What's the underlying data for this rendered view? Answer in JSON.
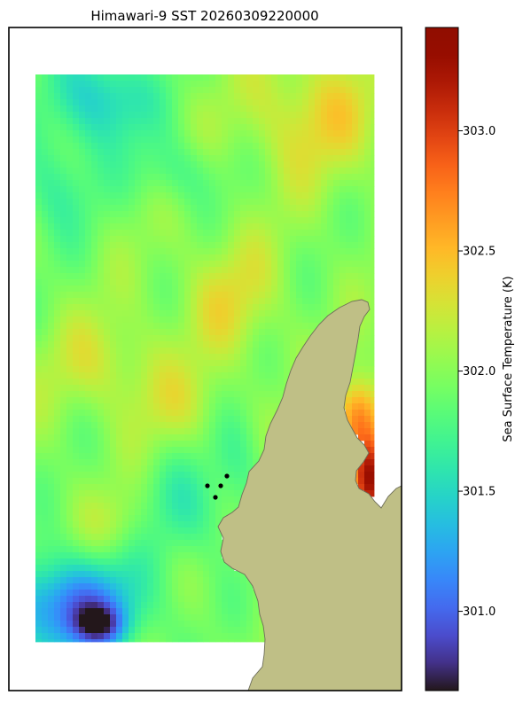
{
  "chart_data": {
    "type": "heatmap",
    "title": "Himawari-9 SST 20260309220000",
    "colorbar": {
      "label": "Sea Surface Temperature (K)",
      "range": [
        300.67,
        303.43
      ],
      "ticks": [
        301.0,
        301.5,
        302.0,
        302.5,
        303.0
      ],
      "tick_labels": [
        "301.0",
        "301.5",
        "302.0",
        "302.5",
        "303.0"
      ],
      "colormap": "turbo"
    },
    "field_summary": {
      "typical_range": [
        301.3,
        302.6
      ],
      "cool_regions": [
        "upper-left",
        "lower-left corner"
      ],
      "warm_regions": [
        "upper-right",
        "centre-right band",
        "near coast at right edge"
      ],
      "min_approx": 300.7,
      "max_approx": 303.4
    },
    "markers": {
      "count": 4,
      "color": "#000000"
    },
    "land_color": "#bfbf86",
    "axes": {
      "ticks_visible": false,
      "grid": false
    }
  }
}
